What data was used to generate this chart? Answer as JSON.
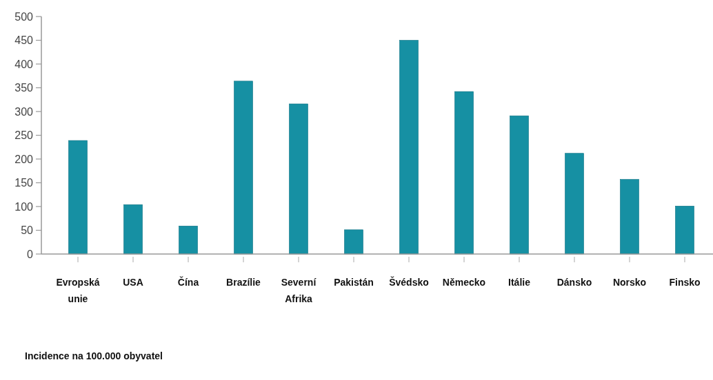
{
  "chart_data": {
    "type": "bar",
    "categories": [
      "Evropská unie",
      "USA",
      "Čína",
      "Brazílie",
      "Severní Afrika",
      "Pakistán",
      "Švédsko",
      "Německo",
      "Itálie",
      "Dánsko",
      "Norsko",
      "Finsko"
    ],
    "values": [
      239,
      104,
      59,
      364,
      316,
      51,
      450,
      342,
      291,
      212,
      157,
      101
    ],
    "color": "#1690a3",
    "ylim": [
      0,
      500
    ],
    "yticks": [
      0,
      50,
      100,
      150,
      200,
      250,
      300,
      350,
      400,
      450,
      500
    ],
    "grid": false,
    "annotations": [
      "Incidence na 100.000 obyvatel"
    ]
  }
}
